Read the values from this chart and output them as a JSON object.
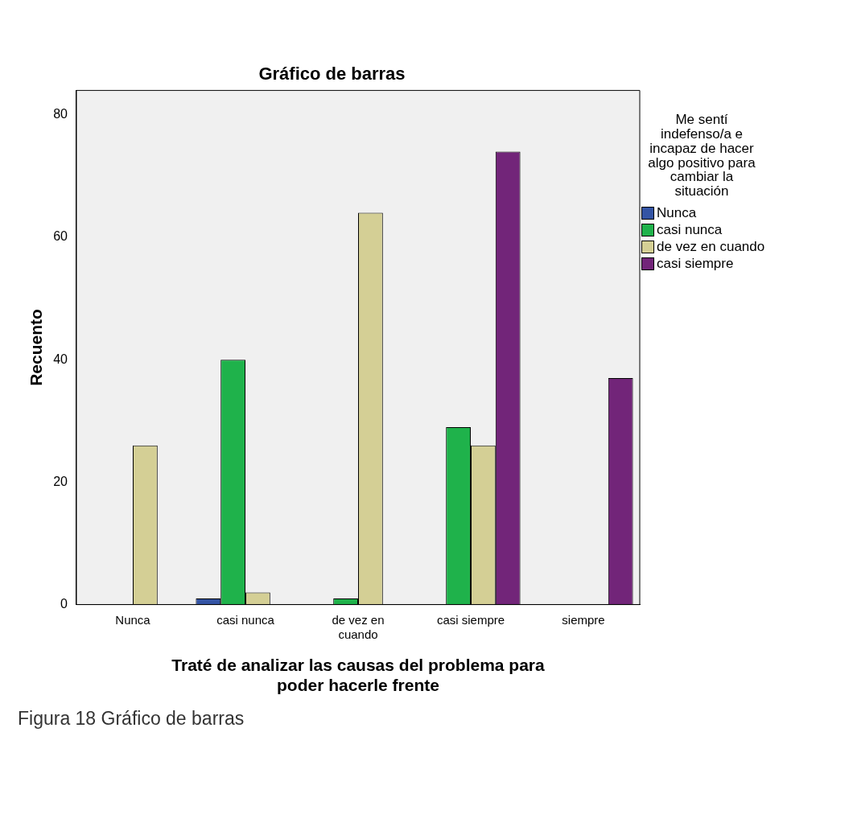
{
  "chart_data": {
    "type": "bar",
    "title": "Gráfico de barras",
    "xlabel": "Traté de analizar las causas del problema para poder hacerle frente",
    "ylabel": "Recuento",
    "legend_title": "Me sentí indefenso/a e incapaz de hacer algo positivo para cambiar la situación",
    "legend": "right",
    "categories": [
      "Nunca",
      "casi nunca",
      "de vez en cuando",
      "casi siempre",
      "siempre"
    ],
    "series": [
      {
        "name": "Nunca",
        "color": "#3454a4",
        "values": [
          null,
          1,
          null,
          null,
          null
        ]
      },
      {
        "name": "casi nunca",
        "color": "#1fb24b",
        "values": [
          null,
          40,
          1,
          29,
          null
        ]
      },
      {
        "name": "de vez en cuando",
        "color": "#d4cf95",
        "values": [
          26,
          2,
          64,
          26,
          null
        ]
      },
      {
        "name": "casi siempre",
        "color": "#722579",
        "values": [
          null,
          null,
          null,
          74,
          37
        ]
      }
    ],
    "ylim": [
      0,
      84
    ],
    "yticks": [
      0,
      20,
      40,
      60,
      80
    ],
    "grid": false,
    "annotations": [
      "Figura 18 Gráfico de barras"
    ]
  }
}
